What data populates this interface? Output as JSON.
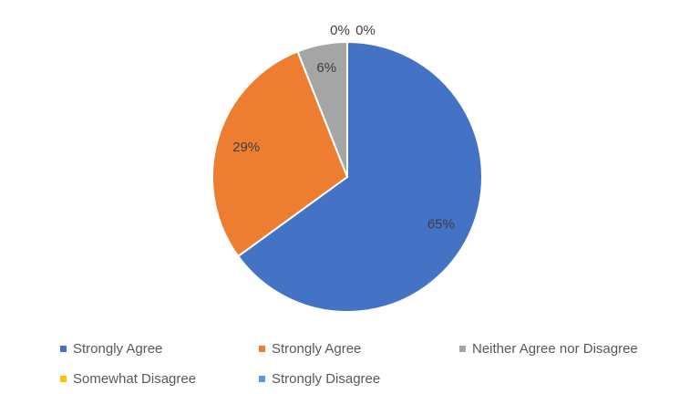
{
  "chart_data": {
    "type": "pie",
    "title": "",
    "categories": [
      "Strongly Agree",
      "Strongly Agree",
      "Neither Agree nor Disagree",
      "Somewhat Disagree",
      "Strongly Disagree"
    ],
    "values": [
      65,
      29,
      6,
      0,
      0
    ],
    "data_labels": [
      "65%",
      "29%",
      "6%",
      "0%",
      "0%"
    ],
    "colors": [
      "#4472C4",
      "#ED7D31",
      "#A5A5A5",
      "#FFC000",
      "#5B9BD5"
    ],
    "legend_position": "bottom"
  }
}
